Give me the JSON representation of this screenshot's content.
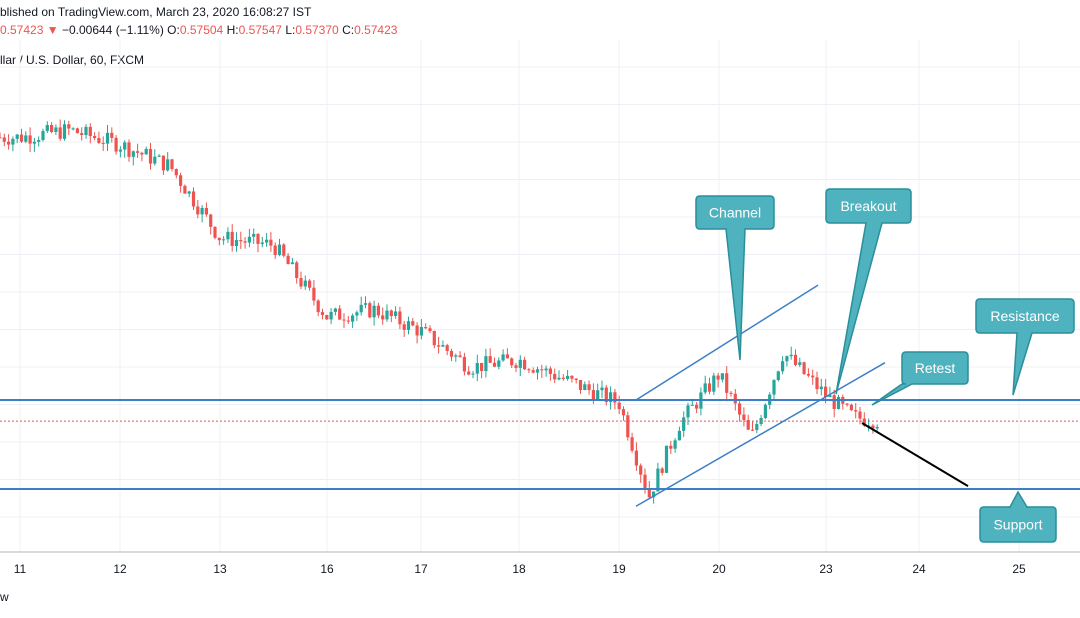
{
  "header": {
    "published": "blished on TradingView.com, March 23, 2020 16:08:27 IST",
    "price": "0.57423",
    "arrow": "▼",
    "change": "−0.00644 (−1.11%)",
    "o_label": "O:",
    "o_value": "0.57504",
    "h_label": "H:",
    "h_value": "0.57547",
    "l_label": "L:",
    "l_value": "0.57370",
    "c_label": "C:",
    "c_value": "0.57423",
    "symbol": "llar / U.S. Dollar, 60, FXCM"
  },
  "footer": {
    "brand": "w"
  },
  "colors": {
    "up": "#26a69a",
    "down": "#ef5350",
    "level_line": "#3d7fc7",
    "channel_line": "#3d7fc7",
    "callout_fill": "#4fb3bf",
    "callout_border": "#2a8f9b",
    "projection": "#000000",
    "last_price_line": "#ef5350",
    "grid": "#edf0f4"
  },
  "annotations": [
    {
      "name": "callout-channel",
      "text": "Channel"
    },
    {
      "name": "callout-breakout",
      "text": "Breakout"
    },
    {
      "name": "callout-resistance",
      "text": "Resistance"
    },
    {
      "name": "callout-retest",
      "text": "Retest"
    },
    {
      "name": "callout-support",
      "text": "Support"
    }
  ],
  "chart_data": {
    "type": "candlestick",
    "symbol": "llar / U.S. Dollar, 60, FXCM",
    "x_tick_labels": [
      "11",
      "12",
      "13",
      "16",
      "17",
      "18",
      "19",
      "20",
      "23",
      "24",
      "25"
    ],
    "levels": {
      "resistance": 0.5757,
      "support": 0.5695,
      "last_price": 0.57423
    },
    "channel": {
      "upper": [
        [
          "19",
          0.5757
        ],
        [
          "20 late",
          0.5828
        ]
      ],
      "lower": [
        [
          "19",
          0.5685
        ],
        [
          "23 mid",
          0.5775
        ]
      ]
    },
    "projection": [
      [
        "23 late",
        0.5741
      ],
      [
        "24 late",
        0.5698
      ]
    ],
    "price_path": [
      {
        "day": "11",
        "close": 0.594
      },
      {
        "day": "11.5",
        "close": 0.5945
      },
      {
        "day": "12",
        "close": 0.5935
      },
      {
        "day": "12.5",
        "close": 0.592
      },
      {
        "day": "13",
        "close": 0.587
      },
      {
        "day": "13.5",
        "close": 0.5865
      },
      {
        "day": "16",
        "close": 0.5815
      },
      {
        "day": "16.5",
        "close": 0.582
      },
      {
        "day": "17",
        "close": 0.5805
      },
      {
        "day": "17.5",
        "close": 0.578
      },
      {
        "day": "18",
        "close": 0.5785
      },
      {
        "day": "18.5",
        "close": 0.577
      },
      {
        "day": "19",
        "close": 0.5755
      },
      {
        "day": "19.3",
        "close": 0.569
      },
      {
        "day": "19.6",
        "close": 0.574
      },
      {
        "day": "20",
        "close": 0.5775
      },
      {
        "day": "20.3",
        "close": 0.573
      },
      {
        "day": "20.6",
        "close": 0.579
      },
      {
        "day": "23",
        "close": 0.576
      },
      {
        "day": "23.3",
        "close": 0.5745
      },
      {
        "day": "23.6",
        "close": 0.57423
      }
    ]
  }
}
